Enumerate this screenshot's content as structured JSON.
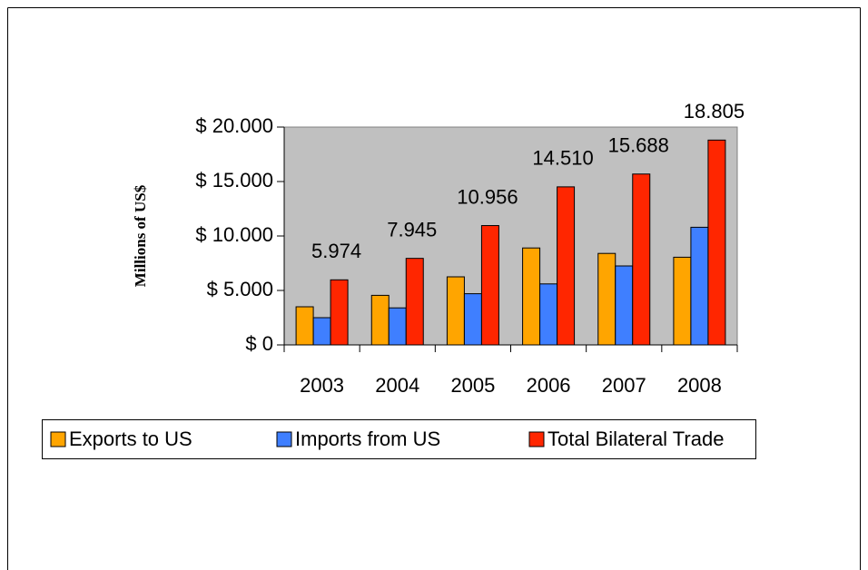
{
  "chart_data": {
    "type": "bar",
    "y_label": "Millions of  US$",
    "categories": [
      "2003",
      "2004",
      "2005",
      "2006",
      "2007",
      "2008"
    ],
    "series": [
      {
        "name": "Exports to US",
        "color": "#ffa500",
        "values": [
          3500,
          4550,
          6250,
          8900,
          8400,
          8050
        ]
      },
      {
        "name": "Imports from US",
        "color": "#3f7fff",
        "values": [
          2500,
          3400,
          4700,
          5600,
          7250,
          10800
        ]
      },
      {
        "name": "Total Bilateral Trade",
        "color": "#ff2600",
        "values": [
          5974,
          7945,
          10956,
          14510,
          15688,
          18805
        ],
        "value_labels": [
          "5.974",
          "7.945",
          "10.956",
          "14.510",
          "15.688",
          "18.805"
        ]
      }
    ],
    "ylim": [
      0,
      20000
    ],
    "yticks": [
      {
        "value": 0,
        "label": "$ 0"
      },
      {
        "value": 5000,
        "label": "$ 5.000"
      },
      {
        "value": 10000,
        "label": "$ 10.000"
      },
      {
        "value": 15000,
        "label": "$ 15.000"
      },
      {
        "value": 20000,
        "label": "$ 20.000"
      }
    ],
    "plot_background": "#c0c0c0"
  }
}
